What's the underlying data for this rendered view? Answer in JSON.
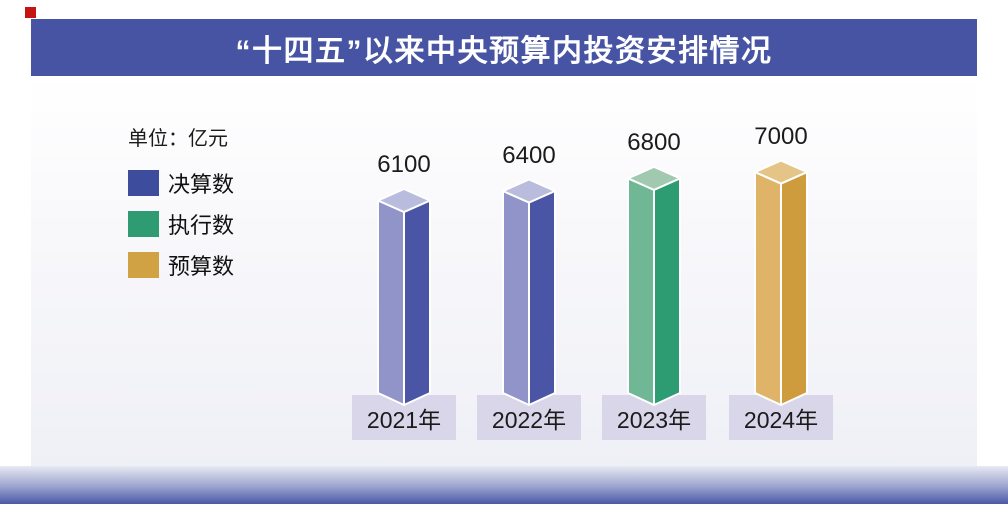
{
  "header": {
    "title": "“十四五”以来中央预算内投资安排情况"
  },
  "marks": {
    "corner_square_color": "#c51414"
  },
  "legend": {
    "unit_label": "单位：亿元",
    "items": [
      {
        "label": "决算数",
        "color": "#3e4c9d"
      },
      {
        "label": "执行数",
        "color": "#2e9b72"
      },
      {
        "label": "预算数",
        "color": "#d0a243"
      }
    ]
  },
  "chart_data": {
    "type": "bar",
    "title": "“十四五”以来中央预算内投资安排情况",
    "unit": "亿元",
    "categories": [
      "2021年",
      "2022年",
      "2023年",
      "2024年"
    ],
    "values": [
      6100,
      6400,
      6800,
      7000
    ],
    "series_of_category": [
      "决算数",
      "决算数",
      "执行数",
      "预算数"
    ],
    "ylim": [
      0,
      7400
    ],
    "grid": false,
    "legend_position": "left",
    "bar_style_3d": true,
    "bar_colors": [
      {
        "left": "#9094c8",
        "right": "#4b55a6",
        "top": "#babcdd"
      },
      {
        "left": "#9094c8",
        "right": "#4b55a6",
        "top": "#babcdd"
      },
      {
        "left": "#6fb795",
        "right": "#2e9c73",
        "top": "#a0c9af"
      },
      {
        "left": "#dfb468",
        "right": "#ce9c3d",
        "top": "#e5c488"
      }
    ],
    "category_box_color": "#d8d6e8"
  },
  "colors": {
    "title_band": "#4754a3",
    "content_gradient_top": "#ffffff",
    "content_gradient_bottom": "#eff0f6",
    "footer_gradient_bottom": "#4b58a7",
    "value_label_text": "#1b1b1b"
  }
}
